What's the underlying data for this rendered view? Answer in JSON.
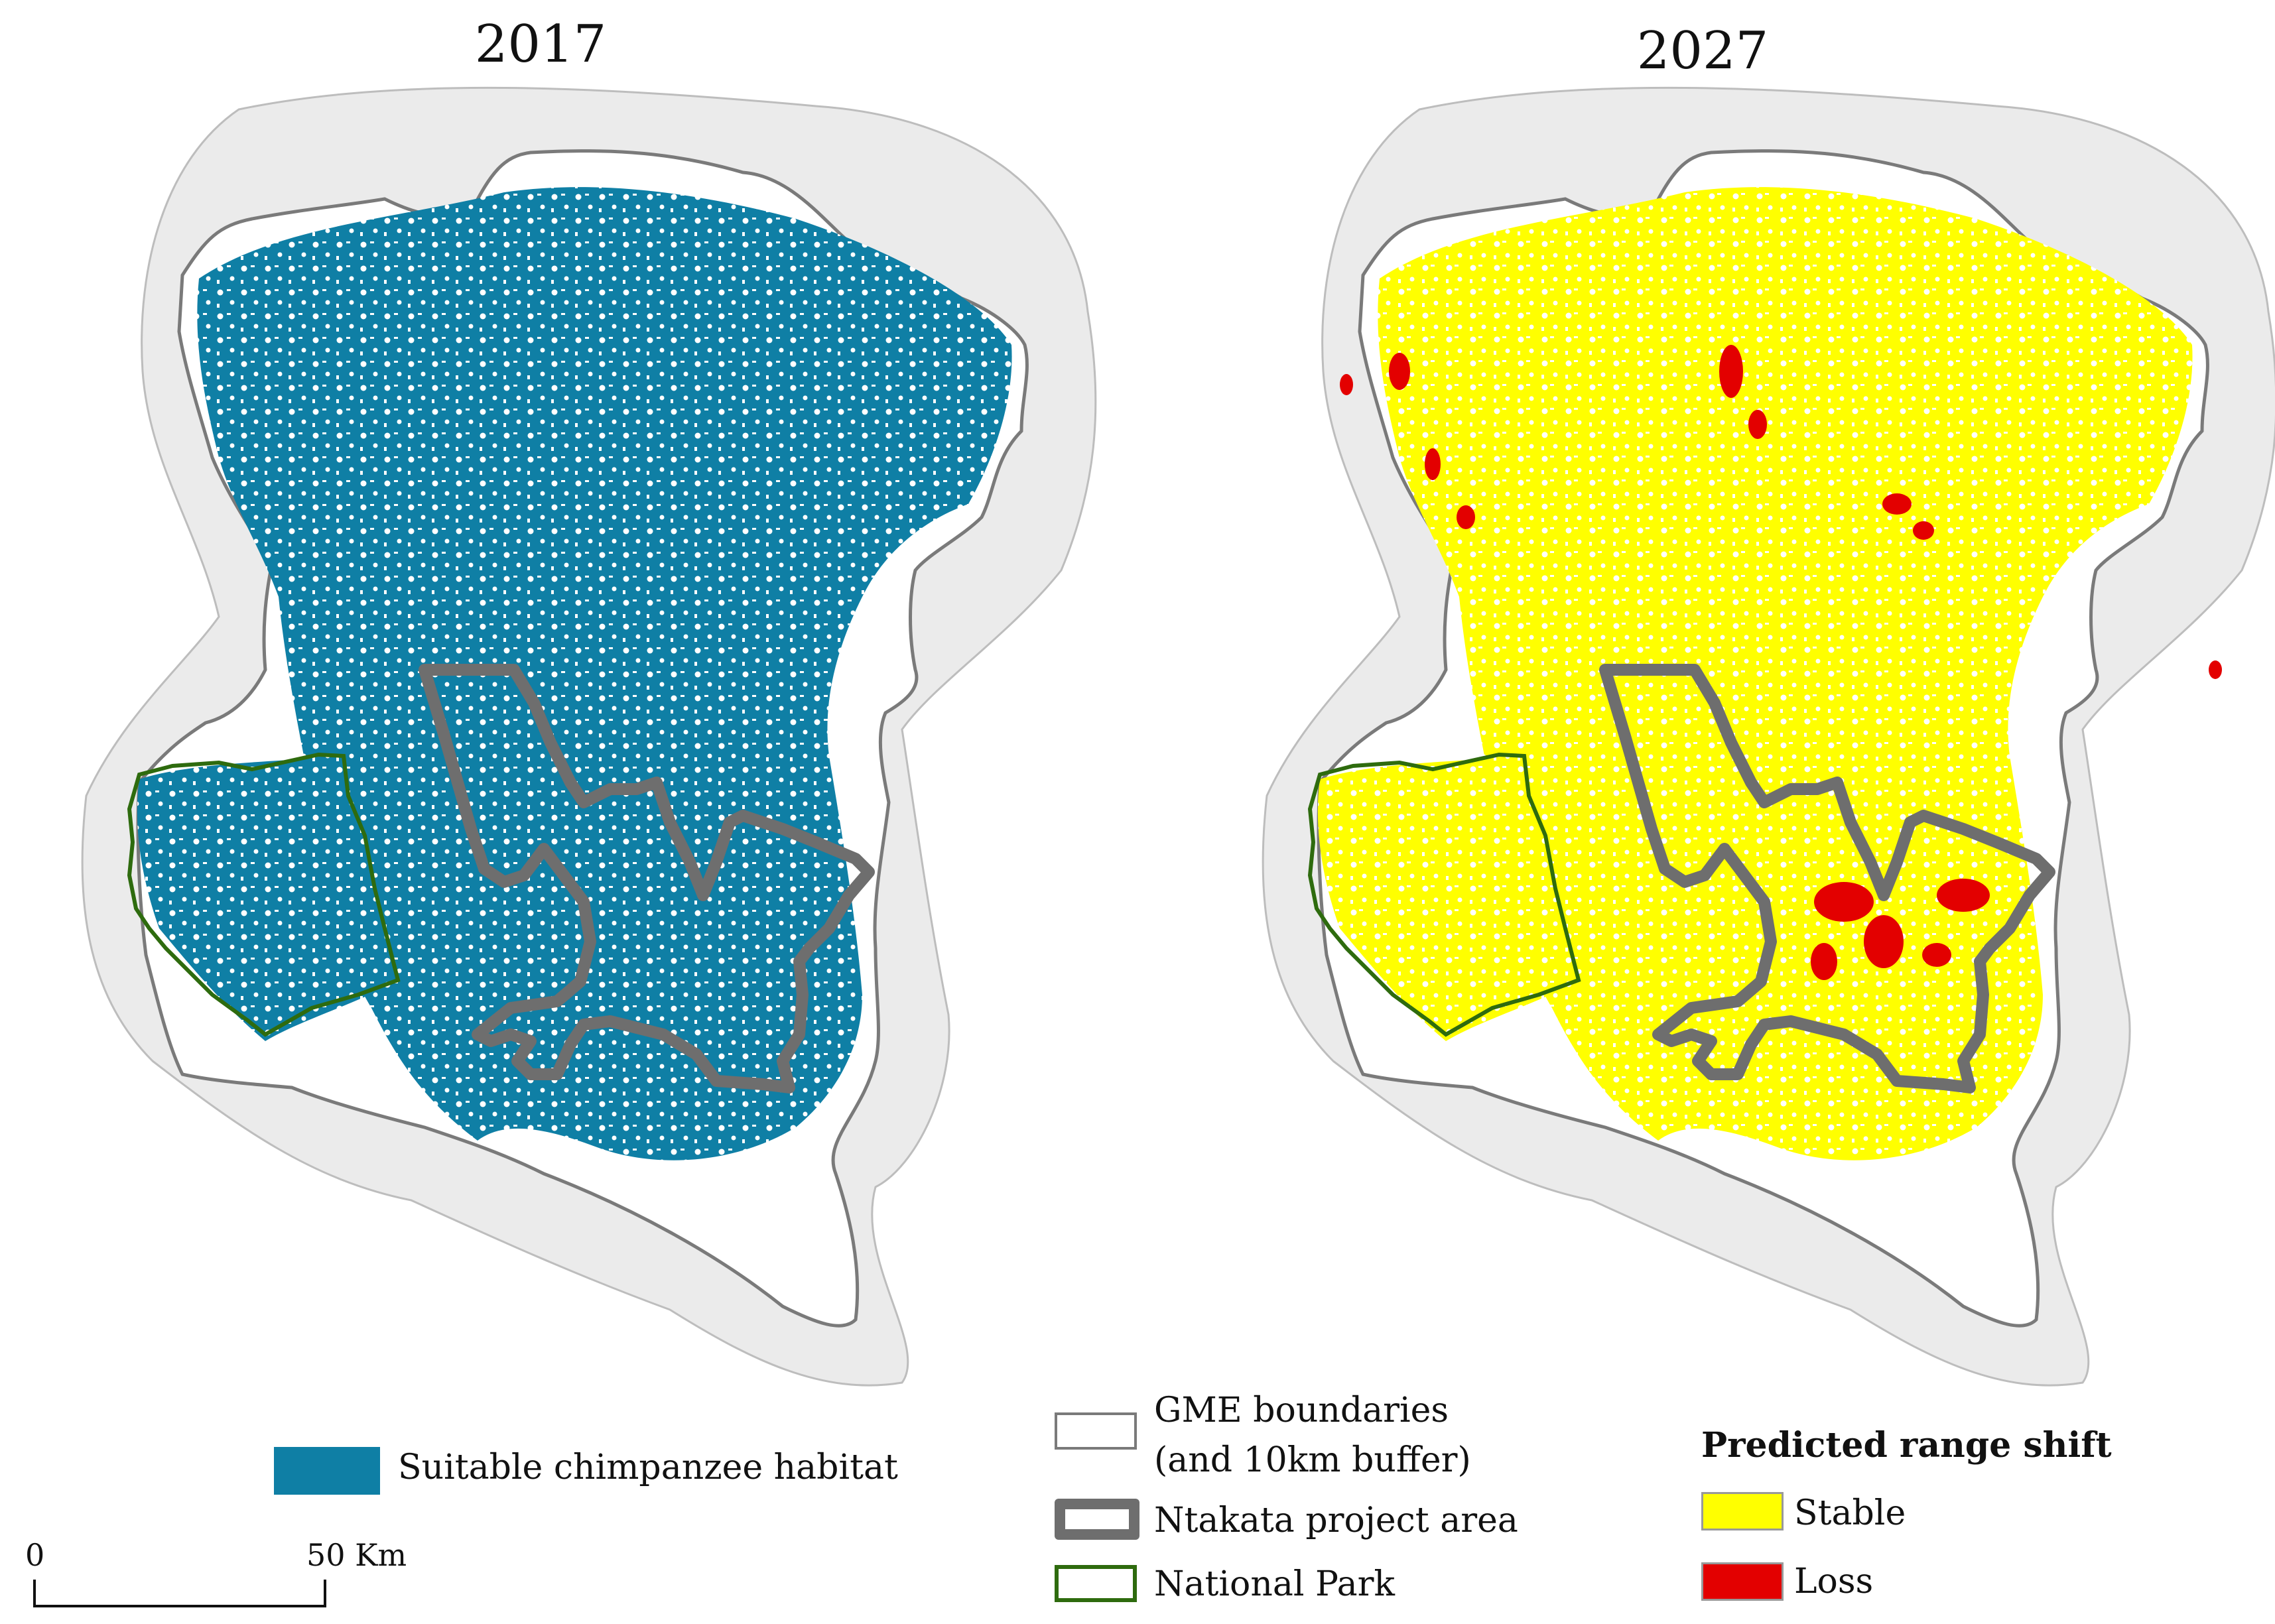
{
  "maps": {
    "left": {
      "title": "2017"
    },
    "right": {
      "title": "2027"
    }
  },
  "legend": {
    "habitat": {
      "label": "Suitable chimpanzee habitat",
      "color": "#0F7FA5"
    },
    "gme": {
      "label_line1": "GME boundaries",
      "label_line2": "(and 10km buffer)"
    },
    "project": {
      "label": "Ntakata project area",
      "color": "#6E6E6E"
    },
    "park": {
      "label": "National Park",
      "color": "#2E6B0E"
    },
    "range_shift": {
      "title": "Predicted range shift",
      "stable": {
        "label": "Stable",
        "color": "#FFFF00"
      },
      "loss": {
        "label": "Loss",
        "color": "#E30000"
      }
    }
  },
  "scale_bar": {
    "start_label": "0",
    "end_label": "50 Km"
  },
  "colors": {
    "buffer": "#EBEBEB",
    "gme_outline": "#7A7A7A"
  }
}
